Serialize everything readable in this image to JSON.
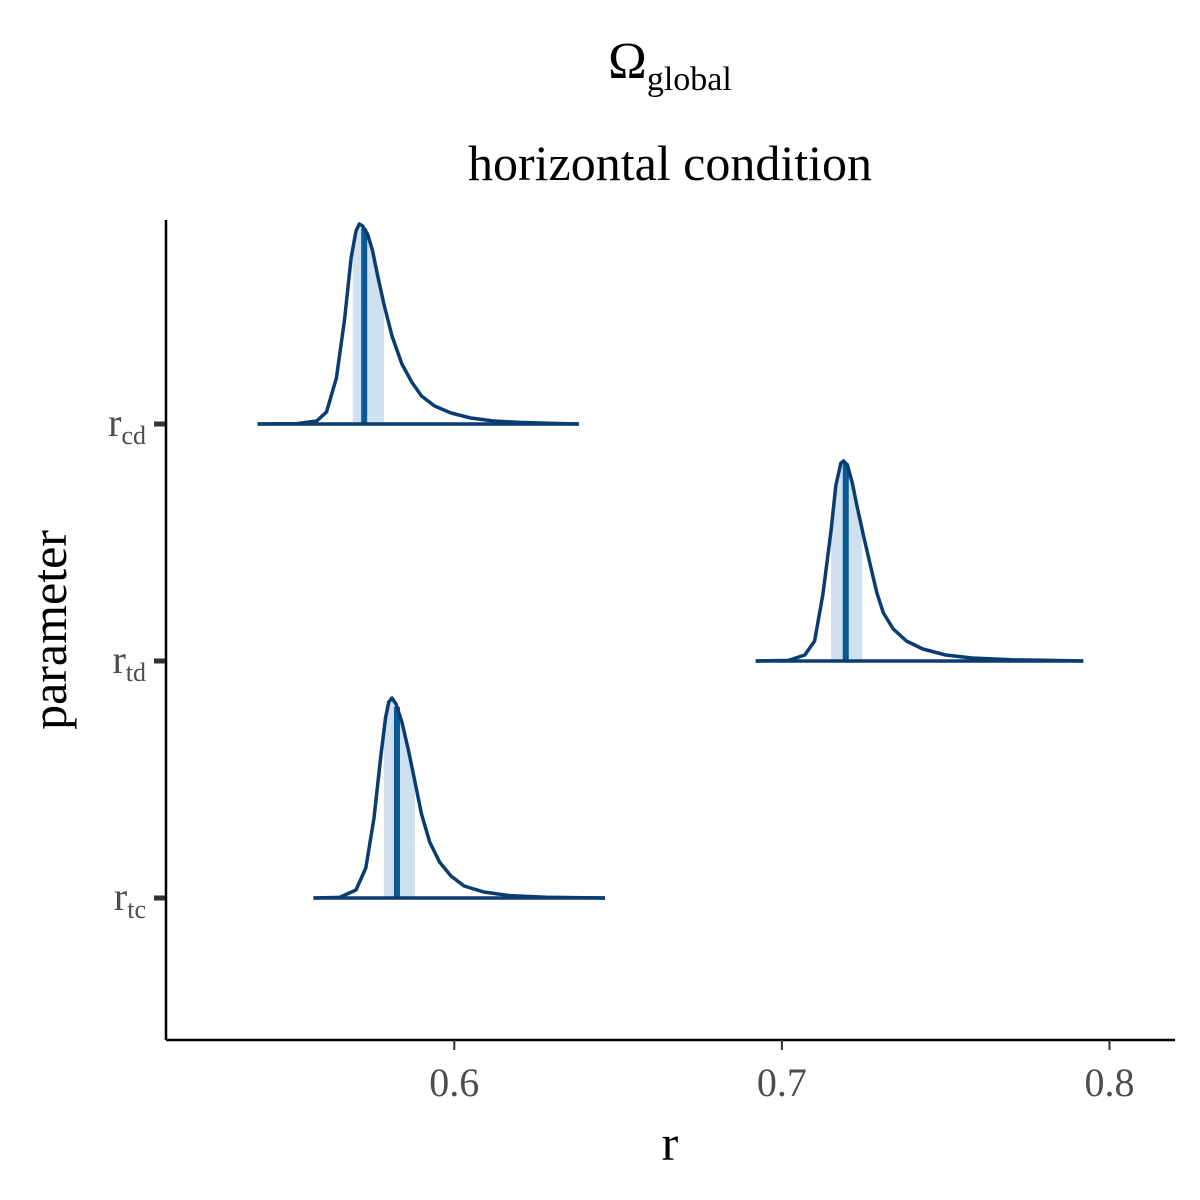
{
  "chart_data": {
    "type": "area",
    "title": {
      "main": "Ω",
      "sub": "global"
    },
    "subtitle": "horizontal condition",
    "xlabel": "r",
    "ylabel": "parameter",
    "xlim": [
      0.512,
      0.82
    ],
    "x_ticks": [
      {
        "value": 0.6,
        "label": "0.6"
      },
      {
        "value": 0.7,
        "label": "0.7"
      },
      {
        "value": 0.8,
        "label": "0.8"
      }
    ],
    "grid": false,
    "legend": "none",
    "colors": {
      "outline": "#0b3c6f",
      "interval": "#cfe0ee",
      "median": "#0a5a96",
      "axis": "#000000",
      "tick": "#333333"
    },
    "series": [
      {
        "label_main": "r",
        "label_sub": "cd",
        "median": 0.5725,
        "interval": [
          0.569,
          0.5785
        ],
        "density": [
          [
            0.54,
            0.0
          ],
          [
            0.552,
            0.002
          ],
          [
            0.558,
            0.015
          ],
          [
            0.561,
            0.06
          ],
          [
            0.564,
            0.23
          ],
          [
            0.5665,
            0.52
          ],
          [
            0.5685,
            0.83
          ],
          [
            0.57,
            0.965
          ],
          [
            0.571,
            1.0
          ],
          [
            0.572,
            0.99
          ],
          [
            0.5735,
            0.95
          ],
          [
            0.575,
            0.87
          ],
          [
            0.5765,
            0.75
          ],
          [
            0.5785,
            0.6
          ],
          [
            0.581,
            0.44
          ],
          [
            0.584,
            0.3
          ],
          [
            0.587,
            0.21
          ],
          [
            0.59,
            0.14
          ],
          [
            0.594,
            0.09
          ],
          [
            0.599,
            0.055
          ],
          [
            0.605,
            0.03
          ],
          [
            0.612,
            0.015
          ],
          [
            0.62,
            0.008
          ],
          [
            0.63,
            0.003
          ],
          [
            0.638,
            0.0
          ]
        ]
      },
      {
        "label_main": "r",
        "label_sub": "td",
        "median": 0.7195,
        "interval": [
          0.715,
          0.7245
        ],
        "density": [
          [
            0.692,
            0.0
          ],
          [
            0.702,
            0.003
          ],
          [
            0.707,
            0.03
          ],
          [
            0.71,
            0.1
          ],
          [
            0.7125,
            0.33
          ],
          [
            0.715,
            0.65
          ],
          [
            0.7165,
            0.88
          ],
          [
            0.718,
            0.99
          ],
          [
            0.7188,
            1.0
          ],
          [
            0.72,
            0.98
          ],
          [
            0.7215,
            0.89
          ],
          [
            0.723,
            0.77
          ],
          [
            0.725,
            0.62
          ],
          [
            0.727,
            0.48
          ],
          [
            0.729,
            0.34
          ],
          [
            0.731,
            0.24
          ],
          [
            0.734,
            0.16
          ],
          [
            0.738,
            0.1
          ],
          [
            0.743,
            0.06
          ],
          [
            0.75,
            0.03
          ],
          [
            0.758,
            0.015
          ],
          [
            0.77,
            0.006
          ],
          [
            0.78,
            0.004
          ],
          [
            0.792,
            0.0
          ]
        ]
      },
      {
        "label_main": "r",
        "label_sub": "tc",
        "median": 0.5825,
        "interval": [
          0.5785,
          0.588
        ],
        "density": [
          [
            0.557,
            0.0
          ],
          [
            0.565,
            0.003
          ],
          [
            0.57,
            0.04
          ],
          [
            0.573,
            0.15
          ],
          [
            0.5755,
            0.4
          ],
          [
            0.5775,
            0.7
          ],
          [
            0.579,
            0.9
          ],
          [
            0.58,
            0.98
          ],
          [
            0.581,
            1.0
          ],
          [
            0.5822,
            0.97
          ],
          [
            0.584,
            0.88
          ],
          [
            0.586,
            0.74
          ],
          [
            0.588,
            0.58
          ],
          [
            0.59,
            0.42
          ],
          [
            0.5925,
            0.28
          ],
          [
            0.5955,
            0.18
          ],
          [
            0.599,
            0.11
          ],
          [
            0.603,
            0.06
          ],
          [
            0.609,
            0.03
          ],
          [
            0.617,
            0.012
          ],
          [
            0.628,
            0.004
          ],
          [
            0.646,
            0.0
          ]
        ]
      }
    ]
  }
}
